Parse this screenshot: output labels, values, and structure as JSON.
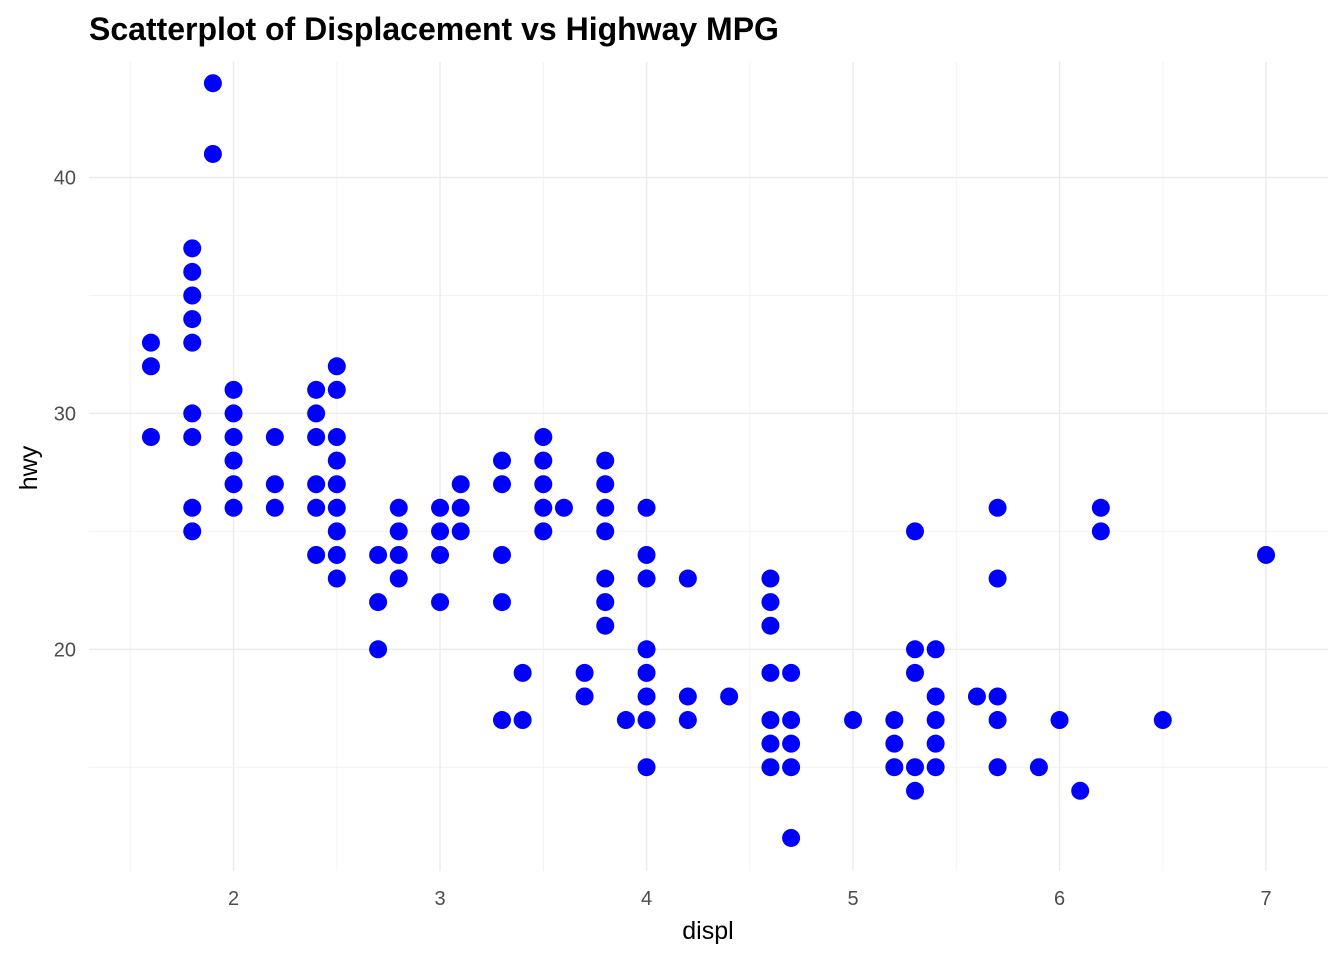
{
  "chart_data": {
    "type": "scatter",
    "title": "Scatterplot of Displacement vs Highway MPG",
    "xlabel": "displ",
    "ylabel": "hwy",
    "xlim": [
      1.3,
      7.3
    ],
    "ylim": [
      10.6,
      44.9
    ],
    "x_ticks": [
      2,
      3,
      4,
      5,
      6,
      7
    ],
    "x_tick_labels": [
      "2",
      "3",
      "4",
      "5",
      "6",
      "7"
    ],
    "y_ticks": [
      20,
      30,
      40
    ],
    "y_tick_labels": [
      "20",
      "30",
      "40"
    ],
    "grid": true,
    "legend": "none",
    "point_color": "#0000ff",
    "series": [
      {
        "points": [
          [
            1.6,
            33
          ],
          [
            1.6,
            32
          ],
          [
            1.6,
            29
          ],
          [
            1.8,
            37
          ],
          [
            1.8,
            36
          ],
          [
            1.8,
            35
          ],
          [
            1.8,
            34
          ],
          [
            1.8,
            33
          ],
          [
            1.8,
            30
          ],
          [
            1.8,
            29
          ],
          [
            1.8,
            26
          ],
          [
            1.8,
            25
          ],
          [
            1.9,
            44
          ],
          [
            1.9,
            41
          ],
          [
            2.0,
            31
          ],
          [
            2.0,
            30
          ],
          [
            2.0,
            29
          ],
          [
            2.0,
            28
          ],
          [
            2.0,
            27
          ],
          [
            2.0,
            26
          ],
          [
            2.2,
            29
          ],
          [
            2.2,
            27
          ],
          [
            2.2,
            26
          ],
          [
            2.4,
            31
          ],
          [
            2.4,
            30
          ],
          [
            2.4,
            29
          ],
          [
            2.4,
            27
          ],
          [
            2.4,
            26
          ],
          [
            2.4,
            24
          ],
          [
            2.5,
            32
          ],
          [
            2.5,
            31
          ],
          [
            2.5,
            29
          ],
          [
            2.5,
            28
          ],
          [
            2.5,
            27
          ],
          [
            2.5,
            26
          ],
          [
            2.5,
            25
          ],
          [
            2.5,
            24
          ],
          [
            2.5,
            23
          ],
          [
            2.7,
            24
          ],
          [
            2.7,
            22
          ],
          [
            2.7,
            20
          ],
          [
            2.8,
            26
          ],
          [
            2.8,
            25
          ],
          [
            2.8,
            24
          ],
          [
            2.8,
            23
          ],
          [
            3.0,
            26
          ],
          [
            3.0,
            25
          ],
          [
            3.0,
            24
          ],
          [
            3.0,
            22
          ],
          [
            3.1,
            27
          ],
          [
            3.1,
            26
          ],
          [
            3.1,
            25
          ],
          [
            3.3,
            28
          ],
          [
            3.3,
            27
          ],
          [
            3.3,
            24
          ],
          [
            3.3,
            22
          ],
          [
            3.3,
            17
          ],
          [
            3.4,
            19
          ],
          [
            3.4,
            17
          ],
          [
            3.5,
            29
          ],
          [
            3.5,
            28
          ],
          [
            3.5,
            27
          ],
          [
            3.5,
            26
          ],
          [
            3.5,
            25
          ],
          [
            3.6,
            26
          ],
          [
            3.7,
            19
          ],
          [
            3.7,
            18
          ],
          [
            3.8,
            28
          ],
          [
            3.8,
            27
          ],
          [
            3.8,
            26
          ],
          [
            3.8,
            25
          ],
          [
            3.8,
            23
          ],
          [
            3.8,
            22
          ],
          [
            3.8,
            21
          ],
          [
            3.9,
            17
          ],
          [
            4.0,
            26
          ],
          [
            4.0,
            24
          ],
          [
            4.0,
            23
          ],
          [
            4.0,
            20
          ],
          [
            4.0,
            19
          ],
          [
            4.0,
            18
          ],
          [
            4.0,
            17
          ],
          [
            4.0,
            15
          ],
          [
            4.2,
            23
          ],
          [
            4.2,
            18
          ],
          [
            4.2,
            17
          ],
          [
            4.4,
            18
          ],
          [
            4.6,
            23
          ],
          [
            4.6,
            22
          ],
          [
            4.6,
            21
          ],
          [
            4.6,
            19
          ],
          [
            4.6,
            17
          ],
          [
            4.6,
            16
          ],
          [
            4.6,
            15
          ],
          [
            4.7,
            19
          ],
          [
            4.7,
            17
          ],
          [
            4.7,
            16
          ],
          [
            4.7,
            15
          ],
          [
            4.7,
            12
          ],
          [
            5.0,
            17
          ],
          [
            5.2,
            17
          ],
          [
            5.2,
            16
          ],
          [
            5.2,
            15
          ],
          [
            5.3,
            25
          ],
          [
            5.3,
            20
          ],
          [
            5.3,
            19
          ],
          [
            5.3,
            15
          ],
          [
            5.3,
            14
          ],
          [
            5.4,
            20
          ],
          [
            5.4,
            18
          ],
          [
            5.4,
            17
          ],
          [
            5.4,
            16
          ],
          [
            5.4,
            15
          ],
          [
            5.6,
            18
          ],
          [
            5.7,
            26
          ],
          [
            5.7,
            23
          ],
          [
            5.7,
            18
          ],
          [
            5.7,
            17
          ],
          [
            5.7,
            15
          ],
          [
            5.9,
            15
          ],
          [
            6.0,
            17
          ],
          [
            6.1,
            14
          ],
          [
            6.2,
            26
          ],
          [
            6.2,
            25
          ],
          [
            6.5,
            17
          ],
          [
            7.0,
            24
          ]
        ]
      }
    ]
  }
}
